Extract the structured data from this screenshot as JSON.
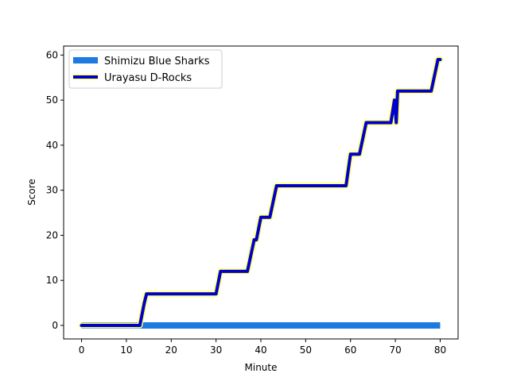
{
  "chart_data": {
    "type": "line",
    "title": "",
    "xlabel": "Minute",
    "ylabel": "Score",
    "xlim": [
      -4,
      84
    ],
    "ylim": [
      -3,
      62
    ],
    "xticks": [
      0,
      10,
      20,
      30,
      40,
      50,
      60,
      70,
      80
    ],
    "yticks": [
      0,
      10,
      20,
      30,
      40,
      50,
      60
    ],
    "grid": false,
    "legend_position": "top-left",
    "series": [
      {
        "name": "Shimizu Blue Sharks",
        "color": "#1c7ae0",
        "style": "thick-bar",
        "x": [
          0,
          80
        ],
        "y": [
          0,
          0
        ]
      },
      {
        "name": "Urayasu D-Rocks",
        "color": "#0000cc",
        "outline_color": "#ffff66",
        "style": "line",
        "x": [
          0,
          13,
          14,
          14.5,
          30,
          31,
          37,
          38.5,
          39,
          40,
          42,
          43.5,
          59,
          60,
          62,
          63.5,
          69,
          69.8,
          70.2,
          70.5,
          78,
          79.5,
          80
        ],
        "y": [
          0,
          0,
          5,
          7,
          7,
          12,
          12,
          19,
          19,
          24,
          24,
          31,
          31,
          38,
          38,
          45,
          45,
          50,
          45,
          52,
          52,
          59,
          59
        ]
      }
    ]
  }
}
